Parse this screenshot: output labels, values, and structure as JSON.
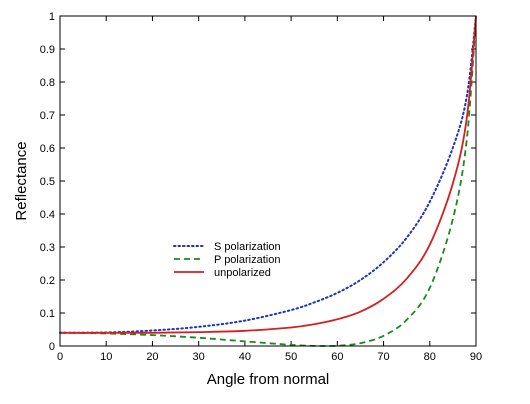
{
  "chart_data": {
    "type": "line",
    "xlabel": "Angle from normal",
    "ylabel": "Reflectance",
    "xlim": [
      0,
      90
    ],
    "ylim": [
      0,
      1
    ],
    "xticks": [
      "0",
      "10",
      "20",
      "30",
      "40",
      "50",
      "60",
      "70",
      "80",
      "90"
    ],
    "yticks": [
      "0",
      "0.1",
      "0.2",
      "0.3",
      "0.4",
      "0.5",
      "0.6",
      "0.7",
      "0.8",
      "0.9",
      "1"
    ],
    "grid": false,
    "legend_position": "center-left",
    "series": [
      {
        "name": "S polarization",
        "color": "#2233bb",
        "style": "dotted",
        "x": [
          0,
          10,
          20,
          30,
          40,
          50,
          55,
          60,
          65,
          70,
          75,
          80,
          85,
          88,
          90
        ],
        "y": [
          0.04,
          0.041,
          0.047,
          0.058,
          0.077,
          0.109,
          0.132,
          0.161,
          0.2,
          0.254,
          0.328,
          0.437,
          0.601,
          0.756,
          1.0
        ]
      },
      {
        "name": "P polarization",
        "color": "#1a8a1a",
        "style": "dashed",
        "x": [
          0,
          10,
          20,
          30,
          40,
          50,
          55,
          57,
          60,
          65,
          70,
          75,
          80,
          85,
          88,
          90
        ],
        "y": [
          0.04,
          0.038,
          0.033,
          0.025,
          0.014,
          0.0035,
          0.0003,
          0.0,
          0.0008,
          0.0084,
          0.031,
          0.079,
          0.176,
          0.385,
          0.625,
          1.0
        ]
      },
      {
        "name": "unpolarized",
        "color": "#d42020",
        "style": "solid",
        "x": [
          0,
          10,
          20,
          30,
          40,
          50,
          55,
          60,
          65,
          70,
          75,
          80,
          85,
          88,
          90
        ],
        "y": [
          0.04,
          0.04,
          0.04,
          0.042,
          0.046,
          0.056,
          0.066,
          0.081,
          0.104,
          0.143,
          0.204,
          0.307,
          0.493,
          0.69,
          1.0
        ]
      }
    ]
  }
}
